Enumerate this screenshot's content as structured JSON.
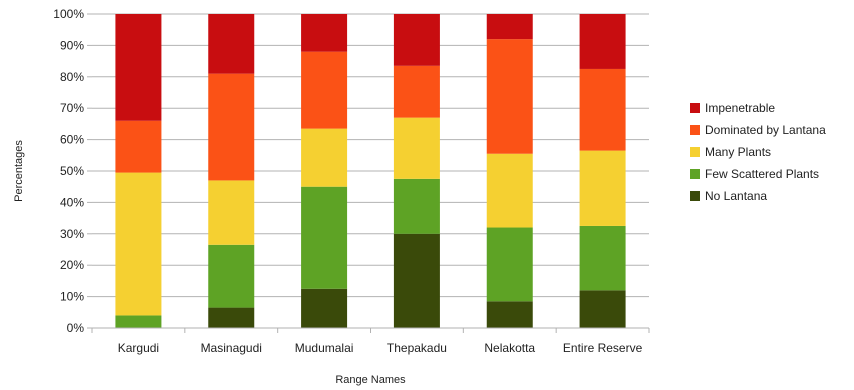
{
  "chart_data": {
    "type": "bar",
    "stacked": true,
    "percent": true,
    "title": "",
    "xlabel": "Range Names",
    "ylabel": "Percentages",
    "ylim": [
      0,
      100
    ],
    "y_ticks": [
      "0%",
      "10%",
      "20%",
      "30%",
      "40%",
      "50%",
      "60%",
      "70%",
      "80%",
      "90%",
      "100%"
    ],
    "grid": "horizontal",
    "legend_position": "right",
    "categories": [
      "Kargudi",
      "Masinagudi",
      "Mudumalai",
      "Thepakadu",
      "Nelakotta",
      "Entire Reserve"
    ],
    "series": [
      {
        "name": "No Lantana",
        "color": "#3a4a0a",
        "values": [
          0,
          6.5,
          12.5,
          30,
          8.5,
          12
        ]
      },
      {
        "name": "Few Scattered Plants",
        "color": "#5ea325",
        "values": [
          4,
          20,
          32.5,
          17.5,
          23.5,
          20.5
        ]
      },
      {
        "name": "Many Plants",
        "color": "#f5d031",
        "values": [
          45.5,
          20.5,
          18.5,
          19.5,
          23.5,
          24
        ]
      },
      {
        "name": "Dominated by Lantana",
        "color": "#fb5216",
        "values": [
          16.5,
          34,
          24.5,
          16.5,
          36.5,
          26
        ]
      },
      {
        "name": "Impenetrable",
        "color": "#c80d10",
        "values": [
          34,
          19,
          12,
          16.5,
          8,
          17.5
        ]
      }
    ],
    "legend_order": [
      "Impenetrable",
      "Dominated by Lantana",
      "Many Plants",
      "Few Scattered Plants",
      "No Lantana"
    ]
  }
}
